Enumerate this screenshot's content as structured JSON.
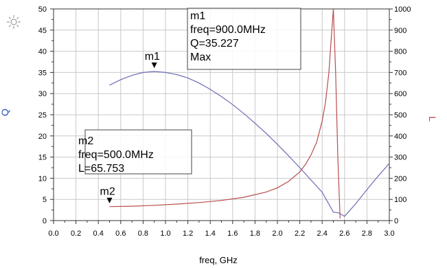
{
  "chart_data": {
    "type": "line",
    "xlabel": "freq, GHz",
    "ylabel_left": "Q",
    "ylabel_right": "L",
    "x_ticks": [
      "0.0",
      "0.2",
      "0.4",
      "0.6",
      "0.8",
      "1.0",
      "1.2",
      "1.4",
      "1.6",
      "1.8",
      "2.0",
      "2.2",
      "2.4",
      "2.6",
      "2.8",
      "3.0"
    ],
    "y_left_ticks": [
      "0",
      "5",
      "10",
      "15",
      "20",
      "25",
      "30",
      "35",
      "40",
      "45",
      "50"
    ],
    "y_right_ticks": [
      "0",
      "100",
      "200",
      "300",
      "400",
      "500",
      "600",
      "700",
      "800",
      "900",
      "1000"
    ],
    "xlim": [
      0,
      3.0
    ],
    "ylim_left": [
      0,
      50
    ],
    "ylim_right": [
      0,
      1000
    ],
    "grid": true,
    "series": [
      {
        "name": "Q",
        "axis": "left",
        "color": "#6b6bb3",
        "x": [
          0.5,
          0.6,
          0.7,
          0.8,
          0.9,
          1.0,
          1.1,
          1.2,
          1.3,
          1.4,
          1.5,
          1.6,
          1.7,
          1.8,
          1.9,
          2.0,
          2.1,
          2.2,
          2.3,
          2.4,
          2.5,
          2.55,
          2.6,
          2.7,
          2.8,
          2.9,
          3.0
        ],
        "y": [
          32.0,
          33.3,
          34.3,
          35.0,
          35.227,
          35.0,
          34.5,
          33.7,
          32.5,
          31.0,
          29.3,
          27.4,
          25.3,
          23.0,
          20.6,
          18.0,
          15.3,
          12.5,
          9.6,
          6.7,
          2.0,
          1.8,
          1.0,
          4.0,
          7.3,
          10.5,
          13.5
        ]
      },
      {
        "name": "L",
        "axis": "right",
        "color": "#b84c4c",
        "x": [
          0.5,
          0.7,
          0.9,
          1.1,
          1.3,
          1.5,
          1.7,
          1.9,
          2.0,
          2.1,
          2.2,
          2.25,
          2.3,
          2.35,
          2.4,
          2.43,
          2.46,
          2.48,
          2.5,
          2.52,
          2.54,
          2.56
        ],
        "y": [
          65.753,
          68,
          72,
          78,
          85,
          95,
          110,
          135,
          155,
          185,
          230,
          265,
          310,
          370,
          470,
          560,
          700,
          850,
          1000,
          700,
          300,
          10
        ]
      }
    ],
    "markers": [
      {
        "name": "m1",
        "series": "Q",
        "x": 0.9,
        "y": 35.227,
        "box_lines": [
          "m1",
          "freq=900.0MHz",
          "Q=35.227",
          "Max"
        ]
      },
      {
        "name": "m2",
        "series": "L",
        "x": 0.5,
        "y": 65.753,
        "box_lines": [
          "m2",
          "freq=500.0MHz",
          "L=65.753"
        ]
      }
    ]
  }
}
